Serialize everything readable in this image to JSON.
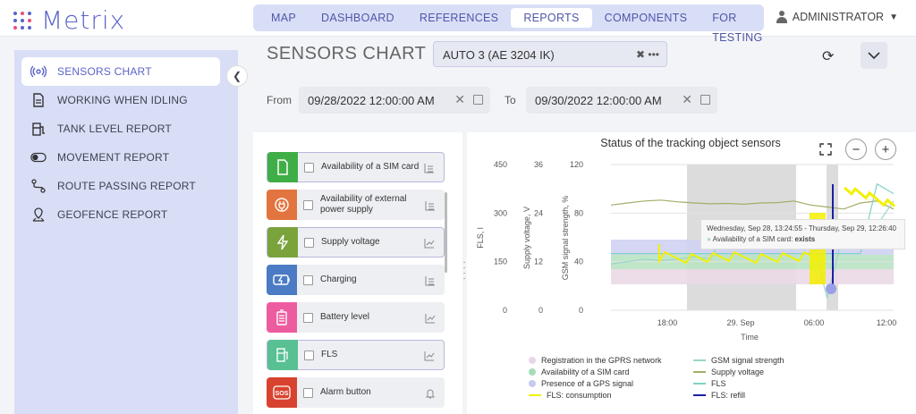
{
  "app": {
    "logo_text": "Metrix"
  },
  "nav": {
    "items": [
      "MAP",
      "DASHBOARD",
      "REFERENCES",
      "REPORTS",
      "COMPONENTS",
      "FOR TESTING"
    ],
    "active_index": 3
  },
  "user": {
    "name": "ADMINISTRATOR"
  },
  "sidebar": {
    "items": [
      {
        "label": "SENSORS CHART",
        "icon": "signal-icon",
        "active": true
      },
      {
        "label": "WORKING WHEN IDLING",
        "icon": "document-icon"
      },
      {
        "label": "TANK LEVEL REPORT",
        "icon": "fuel-station-icon"
      },
      {
        "label": "MOVEMENT REPORT",
        "icon": "toggle-icon"
      },
      {
        "label": "ROUTE PASSING REPORT",
        "icon": "route-icon"
      },
      {
        "label": "GEOFENCE REPORT",
        "icon": "map-pin-icon"
      }
    ]
  },
  "page": {
    "title": "SENSORS CHART"
  },
  "vehicle_select": {
    "value": "AUTO 3 (AE 3204 IK)"
  },
  "filters": {
    "from_label": "From",
    "from_value": "09/28/2022 12:00:00 AM",
    "to_label": "To",
    "to_value": "09/30/2022 12:00:00 AM"
  },
  "sensors": [
    {
      "name": "Availability of a SIM card",
      "color": "#3fae47",
      "icon": "sim-card-icon"
    },
    {
      "name": "Availability of external power supply",
      "color": "#e2753f",
      "icon": "power-plug-icon"
    },
    {
      "name": "Supply voltage",
      "color": "#7ba33c",
      "icon": "lightning-icon"
    },
    {
      "name": "Charging",
      "color": "#4a7bc4",
      "icon": "charging-battery-icon"
    },
    {
      "name": "Battery level",
      "color": "#ee5ca0",
      "icon": "battery-icon"
    },
    {
      "name": "FLS",
      "color": "#58c093",
      "icon": "fuel-icon"
    },
    {
      "name": "Alarm button",
      "color": "#d8432f",
      "icon": "sos-icon"
    }
  ],
  "chart": {
    "tooltip_header": "Wednesday, Sep 28, 13:24:55 - Thursday, Sep 29, 12:26:40",
    "tooltip_series": "Availability of a SIM card:",
    "tooltip_value": "exists"
  },
  "chart_data": {
    "type": "line",
    "title": "Status of the tracking object sensors",
    "xlabel": "Time",
    "x_ticks": [
      "18:00",
      "29. Sep",
      "06:00",
      "12:00"
    ],
    "y_axes": [
      {
        "label": "FLS, l",
        "ticks": [
          0,
          150,
          300,
          450
        ],
        "range": [
          0,
          450
        ]
      },
      {
        "label": "Supply voltage, V",
        "ticks": [
          0,
          12,
          24,
          36
        ],
        "range": [
          0,
          36
        ]
      },
      {
        "label": "GSM signal strength, %",
        "ticks": [
          0,
          40,
          80,
          120
        ],
        "range": [
          0,
          120
        ]
      }
    ],
    "legend": [
      {
        "name": "Registration in the GPRS network",
        "color": "#e8d7e6",
        "kind": "dot"
      },
      {
        "name": "GSM signal strength",
        "color": "#9dd4c9",
        "kind": "line"
      },
      {
        "name": "Availability of a SIM card",
        "color": "#a7dcb9",
        "kind": "dot"
      },
      {
        "name": "Supply voltage",
        "color": "#a6ab68",
        "kind": "line"
      },
      {
        "name": "Presence of a GPS signal",
        "color": "#c7c9ef",
        "kind": "dot"
      },
      {
        "name": "FLS",
        "color": "#7ed3c3",
        "kind": "line"
      },
      {
        "name": "FLS: consumption",
        "color": "#f3f000",
        "kind": "line"
      },
      {
        "name": "FLS: refill",
        "color": "#1c1fa6",
        "kind": "line"
      }
    ],
    "series": [
      {
        "name": "Supply voltage",
        "axis": 1,
        "values": [
          26,
          26.5,
          27,
          27.2,
          26.8,
          26.5,
          26.3,
          26.4,
          26.2,
          26.5,
          26.6,
          27,
          26,
          25.5,
          25,
          26.5,
          27,
          25
        ]
      },
      {
        "name": "GSM signal strength",
        "axis": 2,
        "values": [
          38,
          40,
          42,
          41,
          42,
          44,
          42,
          70,
          70,
          70,
          70,
          70,
          65,
          10,
          65,
          70,
          70,
          90
        ]
      },
      {
        "name": "FLS",
        "axis": 0,
        "values": [
          175,
          175,
          175,
          175,
          175,
          175,
          175,
          175,
          175,
          175,
          175,
          175,
          175,
          175,
          175,
          175,
          390,
          360
        ]
      }
    ]
  }
}
